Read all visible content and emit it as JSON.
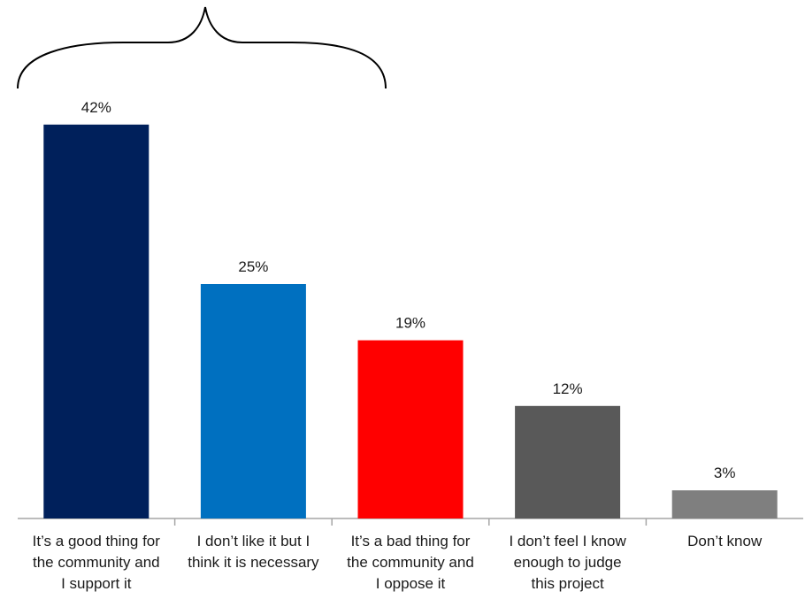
{
  "chart_data": {
    "type": "bar",
    "categories": [
      [
        "It’s a good thing for",
        "the community and",
        "I support it"
      ],
      [
        "I don’t like it but I",
        "think it is necessary"
      ],
      [
        "It’s a bad thing for",
        "the community and",
        "I oppose it"
      ],
      [
        "I don’t feel I know",
        "enough to judge",
        "this project"
      ],
      [
        "Don’t know"
      ]
    ],
    "values": [
      42,
      25,
      19,
      12,
      3
    ],
    "value_labels": [
      "42%",
      "25%",
      "19%",
      "12%",
      "3%"
    ],
    "colors": [
      "#00205b",
      "#0070c0",
      "#ff0000",
      "#595959",
      "#7f7f7f"
    ],
    "ylim": [
      0,
      45
    ],
    "grid": false,
    "legend": "none",
    "annotation": "brace spanning first two bars"
  }
}
